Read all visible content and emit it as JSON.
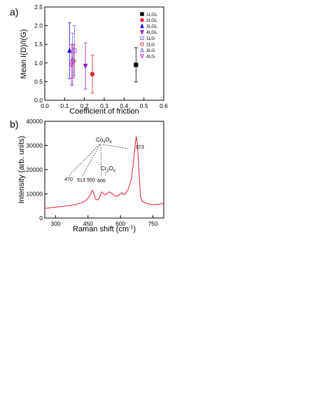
{
  "chart_data": [
    {
      "panel_label": "a)",
      "type": "scatter",
      "xlabel": "Coefficient of friction",
      "ylabel": "Mean I(D)/I(G)",
      "xlim": [
        0.0,
        0.6
      ],
      "ylim": [
        0.0,
        2.5
      ],
      "xticks": [
        "0.0",
        "0.1",
        "0.2",
        "0.3",
        "0.4",
        "0.5",
        "0.6"
      ],
      "yticks": [
        "0.0",
        "0.5",
        "1.0",
        "1.5",
        "2.0",
        "2.5"
      ],
      "legend_position": "top-right",
      "series": [
        {
          "name": "1LGL",
          "color": "#000000",
          "marker": "square-filled",
          "x": 0.46,
          "y": 0.95,
          "yerr": 0.46
        },
        {
          "name": "2LGL",
          "color": "#e8192c",
          "marker": "circle-filled",
          "x": 0.24,
          "y": 0.7,
          "yerr": 0.51
        },
        {
          "name": "3LGL",
          "color": "#1a1ae6",
          "marker": "triangle-up-filled",
          "x": 0.125,
          "y": 1.33,
          "yerr": 0.75
        },
        {
          "name": "4LGL",
          "color": "#8b1fd6",
          "marker": "triangle-down-filled",
          "x": 0.205,
          "y": 0.92,
          "yerr": 0.62
        },
        {
          "name": "1LG",
          "color": "#8b5cf6",
          "marker": "square-open",
          "x": 0.15,
          "y": 1.33,
          "yerr": 0.67
        },
        {
          "name": "2LG",
          "color": "#e8192c",
          "marker": "circle-open",
          "x": 0.145,
          "y": 1.05,
          "yerr": 0.45
        },
        {
          "name": "3LG",
          "color": "#6a6ae6",
          "marker": "triangle-up-open",
          "x": 0.14,
          "y": 1.1,
          "yerr": 0.7
        },
        {
          "name": "4LG",
          "color": "#c026d3",
          "marker": "triangle-down-open",
          "x": 0.135,
          "y": 0.95,
          "yerr": 0.55
        }
      ]
    },
    {
      "panel_label": "b)",
      "type": "line",
      "xlabel": "Raman shift (cm",
      "xlabel_sup": "-1",
      "xlabel_tail": ")",
      "ylabel": "Intensity (arb. units)",
      "xlim": [
        250,
        800
      ],
      "ylim": [
        0,
        40000
      ],
      "xticks": [
        "300",
        "450",
        "600",
        "750"
      ],
      "yticks": [
        "0",
        "10000",
        "20000",
        "30000",
        "40000"
      ],
      "line_color": "#e8192c",
      "series": [
        {
          "x": [
            250,
            300,
            350,
            390,
            420,
            440,
            455,
            465,
            470,
            475,
            485,
            495,
            505,
            513,
            520,
            530,
            540,
            550,
            560,
            575,
            590,
            600,
            606,
            612,
            620,
            635,
            650,
            660,
            668,
            673,
            678,
            685,
            692,
            700,
            715,
            730,
            760,
            800
          ],
          "y": [
            4000,
            4500,
            5000,
            5600,
            6300,
            7200,
            8800,
            10500,
            11500,
            10500,
            7800,
            7500,
            8800,
            10800,
            10200,
            9500,
            10400,
            10800,
            10200,
            9000,
            9200,
            10000,
            10500,
            9800,
            9800,
            11800,
            16000,
            23000,
            30500,
            33800,
            31000,
            20000,
            9000,
            7000,
            6200,
            5800,
            5500,
            6000
          ]
        }
      ],
      "annotations": {
        "co3o4": {
          "base": "Co",
          "sub1": "3",
          "mid": "O",
          "sub2": "4"
        },
        "cr2o3": {
          "base": "Cr",
          "sub1": "2",
          "mid": "O",
          "sub2": "3"
        },
        "peaks": [
          "470",
          "513",
          "550",
          "606",
          "673"
        ]
      }
    }
  ]
}
